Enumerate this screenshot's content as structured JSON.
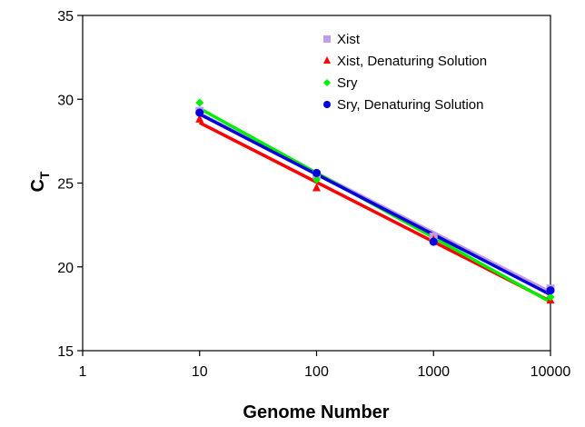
{
  "chart_data": {
    "type": "scatter",
    "xscale": "log",
    "xlim": [
      1,
      10000
    ],
    "ylim": [
      15,
      35
    ],
    "xticks": [
      "1",
      "10",
      "100",
      "1000",
      "10000"
    ],
    "yticks": [
      "15",
      "20",
      "25",
      "30",
      "35"
    ],
    "xlabel": "Genome Number",
    "ylabel_main": "C",
    "ylabel_sub": "T",
    "grid": false,
    "legend_position": "top-right",
    "trendlines": true,
    "series": [
      {
        "name": "Xist",
        "marker": "square",
        "color": "#c39ce8",
        "x": [
          10,
          100,
          1000,
          10000
        ],
        "y": [
          29.3,
          25.5,
          21.8,
          18.7
        ]
      },
      {
        "name": "Xist, Denaturing Solution",
        "marker": "triangle",
        "color": "#ff0000",
        "x": [
          10,
          100,
          1000,
          10000
        ],
        "y": [
          28.8,
          24.7,
          21.6,
          18.0
        ]
      },
      {
        "name": "Sry",
        "marker": "diamond",
        "color": "#00ee00",
        "x": [
          10,
          100,
          1000,
          10000
        ],
        "y": [
          29.8,
          25.2,
          21.5,
          18.2
        ]
      },
      {
        "name": "Sry, Denaturing Solution",
        "marker": "circle",
        "color": "#0000dd",
        "x": [
          10,
          100,
          1000,
          10000
        ],
        "y": [
          29.2,
          25.6,
          21.5,
          18.6
        ]
      }
    ]
  }
}
